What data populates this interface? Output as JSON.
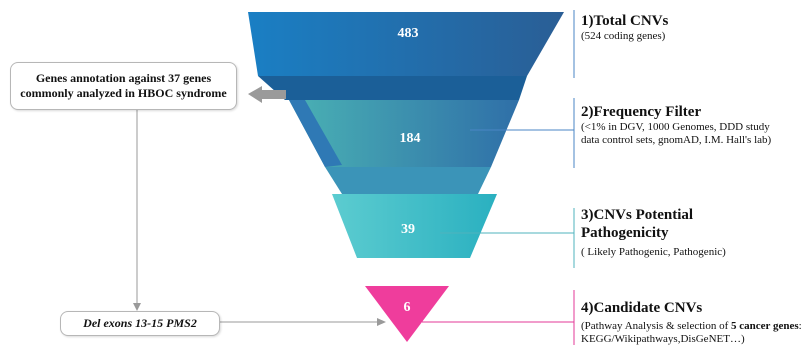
{
  "funnel": {
    "levels": [
      {
        "value": "483",
        "color": "#1f6fb0"
      },
      {
        "value": "184",
        "color": "#3aa9b4"
      },
      {
        "value": "39",
        "color": "#43c3c9"
      },
      {
        "value": "6",
        "color": "#ee3f9c"
      }
    ]
  },
  "steps": [
    {
      "title": "1)Total CNVs",
      "sub": "(524 coding genes)"
    },
    {
      "title": "2)Frequency Filter",
      "sub": "(<1% in DGV, 1000 Genomes, DDD study data control sets, gnomAD, I.M. Hall's lab)"
    },
    {
      "title": "3)CNVs Potential Pathogenicity",
      "sub": "( Likely Pathogenic, Pathogenic)"
    },
    {
      "title": "4)Candidate CNVs",
      "sub_prefix": "(Pathway Analysis & selection of ",
      "sub_bold": "5 cancer genes",
      "sub_suffix": ": KEGG/Wikipathways,DisGeNET…)"
    }
  ],
  "annotation_box": {
    "text": "Genes annotation against 37 genes commonly analyzed in HBOC syndrome"
  },
  "deletion_box": {
    "text": "Del exons 13-15 PMS2"
  },
  "colors": {
    "connector_blue": "#4a86c5",
    "connector_teal": "#4fb3bd",
    "connector_pink": "#e33a97",
    "arrow_gray": "#9a9a9a"
  }
}
